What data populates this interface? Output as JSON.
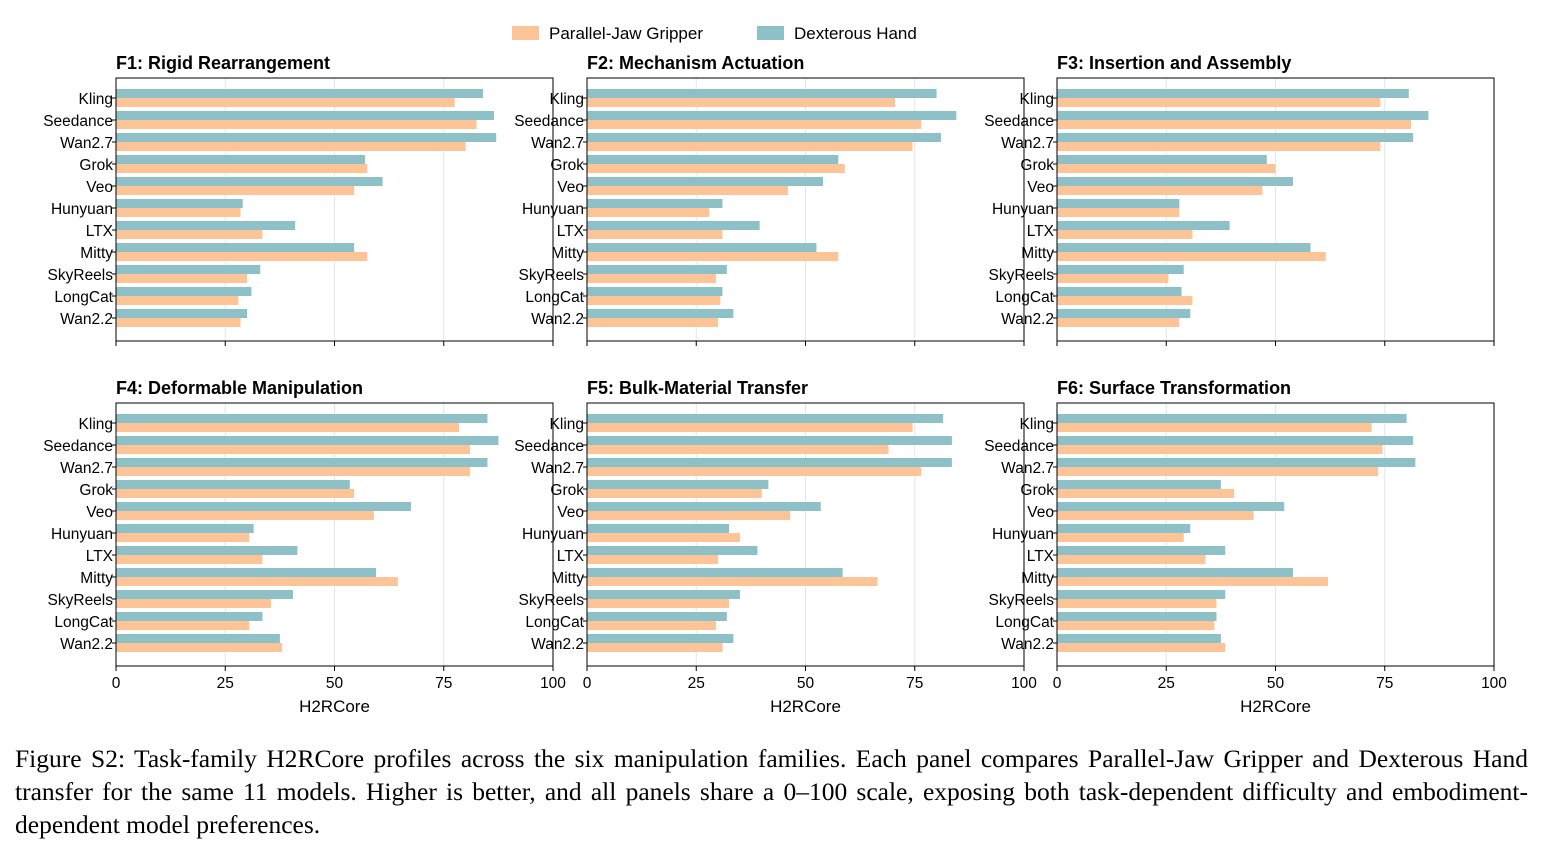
{
  "figure": {
    "caption": "Figure S2: Task-family H2RCore profiles across the six manipulation families. Each panel compares Parallel-Jaw Gripper and Dexterous Hand transfer for the same 11 models. Higher is better, and all panels share a 0–100 scale, exposing both task-dependent difficulty and embodiment-dependent model preferences."
  },
  "colors": {
    "gripper": "#fdc597",
    "hand": "#8dc1c7",
    "grid": "#e6e6e6",
    "axis": "#000000"
  },
  "legend": {
    "position": "top-center",
    "entries": [
      "Parallel-Jaw Gripper",
      "Dexterous Hand"
    ]
  },
  "chart_data": [
    {
      "type": "bar",
      "orientation": "horizontal",
      "title": "F1: Rigid Rearrangement",
      "xlabel": "",
      "xlim": [
        0,
        100
      ],
      "xticks": [
        0,
        25,
        50,
        75,
        100
      ],
      "show_tick_labels": false,
      "grid": "x",
      "categories": [
        "Kling",
        "Seedance",
        "Wan2.7",
        "Grok",
        "Veo",
        "Hunyuan",
        "LTX",
        "Mitty",
        "SkyReels",
        "LongCat",
        "Wan2.2"
      ],
      "series": [
        {
          "name": "Dexterous Hand",
          "values": [
            84,
            86.5,
            87,
            57,
            61,
            29,
            41,
            54.5,
            33,
            31,
            30
          ]
        },
        {
          "name": "Parallel-Jaw Gripper",
          "values": [
            77.5,
            82.5,
            80,
            57.5,
            54.5,
            28.5,
            33.5,
            57.5,
            30,
            28,
            28.5
          ]
        }
      ]
    },
    {
      "type": "bar",
      "orientation": "horizontal",
      "title": "F2: Mechanism Actuation",
      "xlabel": "",
      "xlim": [
        0,
        100
      ],
      "xticks": [
        0,
        25,
        50,
        75,
        100
      ],
      "show_tick_labels": false,
      "grid": "x",
      "categories": [
        "Kling",
        "Seedance",
        "Wan2.7",
        "Grok",
        "Veo",
        "Hunyuan",
        "LTX",
        "Mitty",
        "SkyReels",
        "LongCat",
        "Wan2.2"
      ],
      "series": [
        {
          "name": "Dexterous Hand",
          "values": [
            80,
            84.5,
            81,
            57.5,
            54,
            31,
            39.5,
            52.5,
            32,
            31,
            33.5
          ]
        },
        {
          "name": "Parallel-Jaw Gripper",
          "values": [
            70.5,
            76.5,
            74.5,
            59,
            46,
            28,
            31,
            57.5,
            29.5,
            30.5,
            30
          ]
        }
      ]
    },
    {
      "type": "bar",
      "orientation": "horizontal",
      "title": "F3: Insertion and Assembly",
      "xlabel": "",
      "xlim": [
        0,
        100
      ],
      "xticks": [
        0,
        25,
        50,
        75,
        100
      ],
      "show_tick_labels": false,
      "grid": "x",
      "categories": [
        "Kling",
        "Seedance",
        "Wan2.7",
        "Grok",
        "Veo",
        "Hunyuan",
        "LTX",
        "Mitty",
        "SkyReels",
        "LongCat",
        "Wan2.2"
      ],
      "series": [
        {
          "name": "Dexterous Hand",
          "values": [
            80.5,
            85,
            81.5,
            48,
            54,
            28,
            39.5,
            58,
            29,
            28.5,
            30.5
          ]
        },
        {
          "name": "Parallel-Jaw Gripper",
          "values": [
            74,
            81,
            74,
            50,
            47,
            28,
            31,
            61.5,
            25.5,
            31,
            28
          ]
        }
      ]
    },
    {
      "type": "bar",
      "orientation": "horizontal",
      "title": "F4: Deformable Manipulation",
      "xlabel": "H2RCore",
      "xlim": [
        0,
        100
      ],
      "xticks": [
        0,
        25,
        50,
        75,
        100
      ],
      "show_tick_labels": true,
      "grid": "x",
      "categories": [
        "Kling",
        "Seedance",
        "Wan2.7",
        "Grok",
        "Veo",
        "Hunyuan",
        "LTX",
        "Mitty",
        "SkyReels",
        "LongCat",
        "Wan2.2"
      ],
      "series": [
        {
          "name": "Dexterous Hand",
          "values": [
            85,
            87.5,
            85,
            53.5,
            67.5,
            31.5,
            41.5,
            59.5,
            40.5,
            33.5,
            37.5
          ]
        },
        {
          "name": "Parallel-Jaw Gripper",
          "values": [
            78.5,
            81,
            81,
            54.5,
            59,
            30.5,
            33.5,
            64.5,
            35.5,
            30.5,
            38
          ]
        }
      ]
    },
    {
      "type": "bar",
      "orientation": "horizontal",
      "title": "F5: Bulk-Material Transfer",
      "xlabel": "H2RCore",
      "xlim": [
        0,
        100
      ],
      "xticks": [
        0,
        25,
        50,
        75,
        100
      ],
      "show_tick_labels": true,
      "grid": "x",
      "categories": [
        "Kling",
        "Seedance",
        "Wan2.7",
        "Grok",
        "Veo",
        "Hunyuan",
        "LTX",
        "Mitty",
        "SkyReels",
        "LongCat",
        "Wan2.2"
      ],
      "series": [
        {
          "name": "Dexterous Hand",
          "values": [
            81.5,
            83.5,
            83.5,
            41.5,
            53.5,
            32.5,
            39,
            58.5,
            35,
            32,
            33.5
          ]
        },
        {
          "name": "Parallel-Jaw Gripper",
          "values": [
            74.5,
            69,
            76.5,
            40,
            46.5,
            35,
            30,
            66.5,
            32.5,
            29.5,
            31
          ]
        }
      ]
    },
    {
      "type": "bar",
      "orientation": "horizontal",
      "title": "F6: Surface Transformation",
      "xlabel": "H2RCore",
      "xlim": [
        0,
        100
      ],
      "xticks": [
        0,
        25,
        50,
        75,
        100
      ],
      "show_tick_labels": true,
      "grid": "x",
      "categories": [
        "Kling",
        "Seedance",
        "Wan2.7",
        "Grok",
        "Veo",
        "Hunyuan",
        "LTX",
        "Mitty",
        "SkyReels",
        "LongCat",
        "Wan2.2"
      ],
      "series": [
        {
          "name": "Dexterous Hand",
          "values": [
            80,
            81.5,
            82,
            37.5,
            52,
            30.5,
            38.5,
            54,
            38.5,
            36.5,
            37.5
          ]
        },
        {
          "name": "Parallel-Jaw Gripper",
          "values": [
            72,
            74.5,
            73.5,
            40.5,
            45,
            29,
            34,
            62,
            36.5,
            36,
            38.5
          ]
        }
      ]
    }
  ]
}
